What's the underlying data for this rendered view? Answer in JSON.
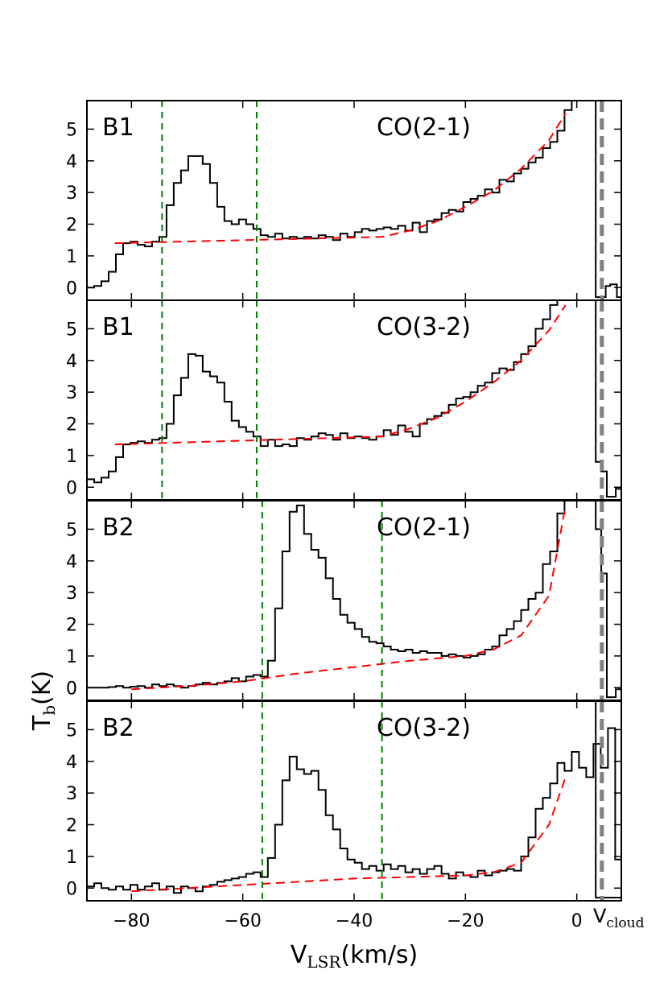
{
  "chart_data": {
    "type": "line",
    "style": "step",
    "xlabel": "V",
    "xlabel_sub": "LSR",
    "xlabel_unit": "(km/s)",
    "ylabel": "T",
    "ylabel_sub": "b",
    "ylabel_unit": "(K)",
    "xlim": [
      -88,
      8
    ],
    "ylim": [
      -0.4,
      5.9
    ],
    "x_ticks": [
      -80,
      -60,
      -40,
      -20,
      0
    ],
    "y_ticks": [
      0,
      1,
      2,
      3,
      4,
      5
    ],
    "vcloud": {
      "x": 4.5,
      "label": "V",
      "label_sub": "cloud",
      "color": "#808080"
    },
    "colors": {
      "spectrum": "#000000",
      "baseline": "#ff0000",
      "window": "#008000"
    },
    "panels": [
      {
        "source": "B1",
        "line": "CO(2-1)",
        "windows": [
          -74.5,
          -57.5
        ],
        "baseline": {
          "x": [
            -83,
            -35,
            -30,
            -25,
            -20,
            -15,
            -10,
            -5,
            -2
          ],
          "y": [
            1.4,
            1.6,
            1.8,
            2.1,
            2.55,
            3.05,
            3.75,
            4.65,
            5.5
          ]
        },
        "spectrum": {
          "x": [
            -88,
            -86.7,
            -85.4,
            -84.1,
            -82.8,
            -81.5,
            -80.2,
            -78.9,
            -77.6,
            -76.3,
            -75,
            -73.7,
            -72.4,
            -71.1,
            -69.8,
            -68.5,
            -67.2,
            -65.9,
            -64.6,
            -63.3,
            -62,
            -60.7,
            -59.4,
            -58.1,
            -56.8,
            -55.5,
            -54.2,
            -52.9,
            -51.6,
            -50.3,
            -49,
            -47.7,
            -46.4,
            -45.1,
            -43.8,
            -42.5,
            -41.2,
            -39.9,
            -38.6,
            -37.3,
            -36,
            -34.7,
            -33.4,
            -32.1,
            -30.8,
            -29.5,
            -28.2,
            -26.9,
            -25.6,
            -24.3,
            -23,
            -21.7,
            -20.4,
            -19.1,
            -17.8,
            -16.5,
            -15.2,
            -13.9,
            -12.6,
            -11.3,
            -10,
            -8.7,
            -7.4,
            -6.1,
            -4.8,
            -3.5,
            -2.2,
            -0.9
          ],
          "y": [
            0,
            0.05,
            0.2,
            0.5,
            1.05,
            1.4,
            1.45,
            1.35,
            1.3,
            1.45,
            1.6,
            2.6,
            3.3,
            3.7,
            4.15,
            4.15,
            3.9,
            3.3,
            2.55,
            2.1,
            2.0,
            2.15,
            2.0,
            1.85,
            1.65,
            1.6,
            1.7,
            1.55,
            1.6,
            1.55,
            1.6,
            1.55,
            1.65,
            1.6,
            1.5,
            1.7,
            1.6,
            1.75,
            1.85,
            1.8,
            1.85,
            1.9,
            1.85,
            1.95,
            1.8,
            2.05,
            1.75,
            2.1,
            2.15,
            2.35,
            2.45,
            2.4,
            2.7,
            2.8,
            2.9,
            3.1,
            3.0,
            3.4,
            3.35,
            3.6,
            3.75,
            3.95,
            4.1,
            4.4,
            4.6,
            4.95,
            5.6,
            5.9
          ]
        },
        "right_fragment": {
          "x": [
            4.5,
            5.2,
            6.0,
            7.2,
            8.0
          ],
          "y": [
            -0.3,
            0.05,
            0.1,
            -0.3,
            -0.3
          ]
        }
      },
      {
        "source": "B1",
        "line": "CO(3-2)",
        "windows": [
          -74.5,
          -57.5
        ],
        "baseline": {
          "x": [
            -83,
            -35,
            -30,
            -25,
            -20,
            -15,
            -10,
            -5,
            -2
          ],
          "y": [
            1.35,
            1.6,
            1.85,
            2.2,
            2.7,
            3.3,
            4.0,
            4.95,
            5.75
          ]
        },
        "spectrum": {
          "x": [
            -88,
            -86.7,
            -85.4,
            -84.1,
            -82.8,
            -81.5,
            -80.2,
            -78.9,
            -77.6,
            -76.3,
            -75,
            -73.7,
            -72.4,
            -71.1,
            -69.8,
            -68.5,
            -67.2,
            -65.9,
            -64.6,
            -63.3,
            -62,
            -60.7,
            -59.4,
            -58.1,
            -56.8,
            -55.5,
            -54.2,
            -52.9,
            -51.6,
            -50.3,
            -49,
            -47.7,
            -46.4,
            -45.1,
            -43.8,
            -42.5,
            -41.2,
            -39.9,
            -38.6,
            -37.3,
            -36,
            -34.7,
            -33.4,
            -32.1,
            -30.8,
            -29.5,
            -28.2,
            -26.9,
            -25.6,
            -24.3,
            -23,
            -21.7,
            -20.4,
            -19.1,
            -17.8,
            -16.5,
            -15.2,
            -13.9,
            -12.6,
            -11.3,
            -10,
            -8.7,
            -7.4,
            -6.1,
            -4.8,
            -3.5
          ],
          "y": [
            0.25,
            0.15,
            0.3,
            0.5,
            0.95,
            1.35,
            1.4,
            1.45,
            1.4,
            1.5,
            1.55,
            2.0,
            2.9,
            3.45,
            4.2,
            4.15,
            3.65,
            3.5,
            3.3,
            2.7,
            2.1,
            1.9,
            1.75,
            1.6,
            1.3,
            1.5,
            1.3,
            1.35,
            1.3,
            1.55,
            1.5,
            1.6,
            1.7,
            1.65,
            1.5,
            1.7,
            1.55,
            1.6,
            1.55,
            1.5,
            1.6,
            1.8,
            1.65,
            1.95,
            1.75,
            1.6,
            2.0,
            2.15,
            2.25,
            2.35,
            2.6,
            2.8,
            2.85,
            3.0,
            3.2,
            3.3,
            3.6,
            3.75,
            3.7,
            3.95,
            4.2,
            4.45,
            5.0,
            5.3,
            5.75,
            5.9
          ]
        },
        "right_fragment": {
          "x": [
            3.4,
            4.4,
            5.4,
            7.0,
            8.0
          ],
          "y": [
            0.8,
            0.5,
            -0.3,
            -0.05,
            1.55
          ]
        }
      },
      {
        "source": "B2",
        "line": "CO(2-1)",
        "windows": [
          -56.5,
          -35
        ],
        "baseline": {
          "x": [
            -80,
            -70,
            -60,
            -50,
            -40,
            -30,
            -20,
            -15,
            -10,
            -5,
            -2
          ],
          "y": [
            -0.05,
            0.05,
            0.2,
            0.45,
            0.65,
            0.85,
            1.0,
            1.2,
            1.65,
            2.9,
            5.75
          ]
        },
        "spectrum": {
          "x": [
            -88,
            -86.7,
            -85.4,
            -84.1,
            -82.8,
            -81.5,
            -80.2,
            -78.9,
            -77.6,
            -76.3,
            -75,
            -73.7,
            -72.4,
            -71.1,
            -69.8,
            -68.5,
            -67.2,
            -65.9,
            -64.6,
            -63.3,
            -62,
            -60.7,
            -59.4,
            -58.1,
            -56.8,
            -55.5,
            -54.2,
            -52.9,
            -51.6,
            -50.3,
            -49,
            -47.7,
            -46.4,
            -45.1,
            -43.8,
            -42.5,
            -41.2,
            -39.9,
            -38.6,
            -37.3,
            -36,
            -34.7,
            -33.4,
            -32.1,
            -30.8,
            -29.5,
            -28.2,
            -26.9,
            -25.6,
            -24.3,
            -23,
            -21.7,
            -20.4,
            -19.1,
            -17.8,
            -16.5,
            -15.2,
            -13.9,
            -12.6,
            -11.3,
            -10,
            -8.7,
            -7.4,
            -6.1,
            -4.8,
            -3.5,
            -2.2
          ],
          "y": [
            0,
            0,
            0,
            0.02,
            0.05,
            0.0,
            0.03,
            0.05,
            0.0,
            0.1,
            0.05,
            0.1,
            0.05,
            0.0,
            0.05,
            0.1,
            0.15,
            0.1,
            0.15,
            0.2,
            0.3,
            0.2,
            0.35,
            0.4,
            0.35,
            0.85,
            2.5,
            4.3,
            5.55,
            5.75,
            4.85,
            4.35,
            4.1,
            3.45,
            2.8,
            2.3,
            2.05,
            1.85,
            1.6,
            1.45,
            1.4,
            1.3,
            1.2,
            1.15,
            1.2,
            1.1,
            1.15,
            1.1,
            1.1,
            1.0,
            1.05,
            1.0,
            0.95,
            1.0,
            1.05,
            1.2,
            1.3,
            1.65,
            1.85,
            2.1,
            2.45,
            2.8,
            3.0,
            3.9,
            4.3,
            5.5,
            5.9
          ]
        },
        "right_fragment": {
          "x": [
            3.4,
            4.4,
            5.4,
            7.0,
            8.0
          ],
          "y": [
            5.0,
            3.6,
            -0.3,
            -0.05,
            -0.3
          ]
        }
      },
      {
        "source": "B2",
        "line": "CO(3-2)",
        "windows": [
          -56.5,
          -35
        ],
        "baseline": {
          "x": [
            -80,
            -70,
            -60,
            -50,
            -40,
            -30,
            -20,
            -15,
            -10,
            -5,
            -2
          ],
          "y": [
            -0.1,
            0.0,
            0.1,
            0.2,
            0.3,
            0.35,
            0.4,
            0.5,
            0.8,
            2.0,
            3.5
          ]
        },
        "spectrum": {
          "x": [
            -88,
            -86.7,
            -85.4,
            -84.1,
            -82.8,
            -81.5,
            -80.2,
            -78.9,
            -77.6,
            -76.3,
            -75,
            -73.7,
            -72.4,
            -71.1,
            -69.8,
            -68.5,
            -67.2,
            -65.9,
            -64.6,
            -63.3,
            -62,
            -60.7,
            -59.4,
            -58.1,
            -56.8,
            -55.5,
            -54.2,
            -52.9,
            -51.6,
            -50.3,
            -49,
            -47.7,
            -46.4,
            -45.1,
            -43.8,
            -42.5,
            -41.2,
            -39.9,
            -38.6,
            -37.3,
            -36,
            -34.7,
            -33.4,
            -32.1,
            -30.8,
            -29.5,
            -28.2,
            -26.9,
            -25.6,
            -24.3,
            -23,
            -21.7,
            -20.4,
            -19.1,
            -17.8,
            -16.5,
            -15.2,
            -13.9,
            -12.6,
            -11.3,
            -10,
            -8.7,
            -7.4,
            -6.1,
            -4.8,
            -3.5,
            -2.2,
            -0.9,
            0.4,
            1.7,
            3.0,
            4.3,
            5.6,
            6.9
          ],
          "y": [
            0.05,
            0.15,
            0.0,
            -0.05,
            0.05,
            -0.05,
            0.1,
            -0.05,
            0.05,
            0.15,
            -0.05,
            0.05,
            -0.15,
            0.05,
            0.0,
            -0.1,
            0.05,
            0.1,
            0.2,
            0.25,
            0.3,
            0.35,
            0.45,
            0.5,
            0.35,
            0.95,
            2.0,
            3.4,
            4.15,
            3.75,
            3.6,
            3.7,
            3.1,
            2.3,
            1.85,
            1.25,
            0.9,
            0.8,
            0.6,
            0.7,
            0.55,
            0.75,
            0.6,
            0.7,
            0.5,
            0.6,
            0.45,
            0.6,
            0.7,
            0.45,
            0.3,
            0.5,
            0.4,
            0.35,
            0.55,
            0.4,
            0.5,
            0.55,
            0.6,
            0.55,
            1.0,
            1.6,
            2.5,
            2.85,
            3.3,
            3.95,
            3.7,
            4.3,
            3.8,
            3.5,
            4.55,
            3.8,
            5.05,
            0.9
          ]
        },
        "right_fragment": {
          "x": [
            8.0
          ],
          "y": [
            -0.3
          ]
        }
      }
    ]
  }
}
